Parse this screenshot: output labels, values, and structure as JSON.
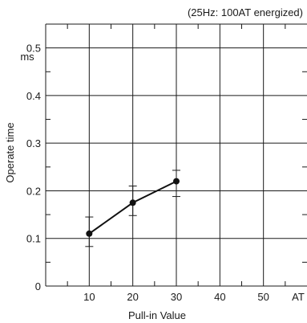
{
  "chart_data": {
    "type": "line",
    "title": "(25Hz: 100AT energized)",
    "xlabel": "Pull-in Value",
    "ylabel": "Operate time",
    "x_unit": "AT",
    "y_unit": "ms",
    "xlim": [
      0,
      60
    ],
    "ylim": [
      0,
      0.55
    ],
    "x_ticks": [
      10,
      20,
      30,
      40,
      50
    ],
    "x_tick_labels": [
      "10",
      "20",
      "30",
      "40",
      "50"
    ],
    "y_ticks": [
      0,
      0.1,
      0.2,
      0.3,
      0.4,
      0.5
    ],
    "y_tick_labels": [
      "0",
      "0.1",
      "0.2",
      "0.3",
      "0.4",
      "0.5"
    ],
    "grid": true,
    "series": [
      {
        "x": [
          10,
          20,
          30
        ],
        "y": [
          0.11,
          0.175,
          0.22
        ],
        "y_max": [
          0.145,
          0.21,
          0.243
        ],
        "y_min": [
          0.083,
          0.148,
          0.188
        ]
      }
    ]
  }
}
